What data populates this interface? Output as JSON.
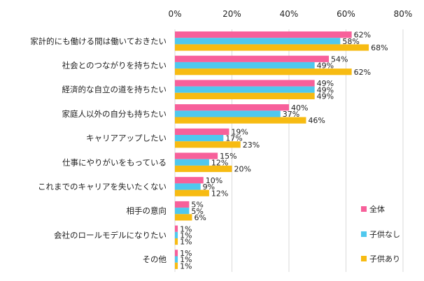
{
  "chart_data": {
    "type": "bar",
    "orientation": "horizontal",
    "title": "",
    "xlabel": "",
    "ylabel": "",
    "xlim": [
      0,
      80
    ],
    "x_ticks": [
      "0%",
      "20%",
      "40%",
      "60%",
      "80%"
    ],
    "x_tick_values": [
      0,
      20,
      40,
      60,
      80
    ],
    "grid": true,
    "legend_position": "bottom-right",
    "categories": [
      "家計的にも働ける間は働いておきたい",
      "社会とのつながりを持ちたい",
      "経済的な自立の道を持ちたい",
      "家庭人以外の自分も持ちたい",
      "キャリアアップしたい",
      "仕事にやりがいをもっている",
      "これまでのキャリアを失いたくない",
      "相手の意向",
      "会社のロールモデルになりたい",
      "その他"
    ],
    "series": [
      {
        "name": "全体",
        "color": "#f7609a",
        "values": [
          62,
          54,
          49,
          40,
          19,
          15,
          10,
          5,
          1,
          1
        ]
      },
      {
        "name": "子供なし",
        "color": "#4fc8ee",
        "values": [
          58,
          49,
          49,
          37,
          17,
          12,
          9,
          5,
          1,
          1
        ]
      },
      {
        "name": "子供あり",
        "color": "#f7bb12",
        "values": [
          68,
          62,
          49,
          46,
          23,
          20,
          12,
          6,
          1,
          1
        ]
      }
    ],
    "value_suffix": "%"
  }
}
